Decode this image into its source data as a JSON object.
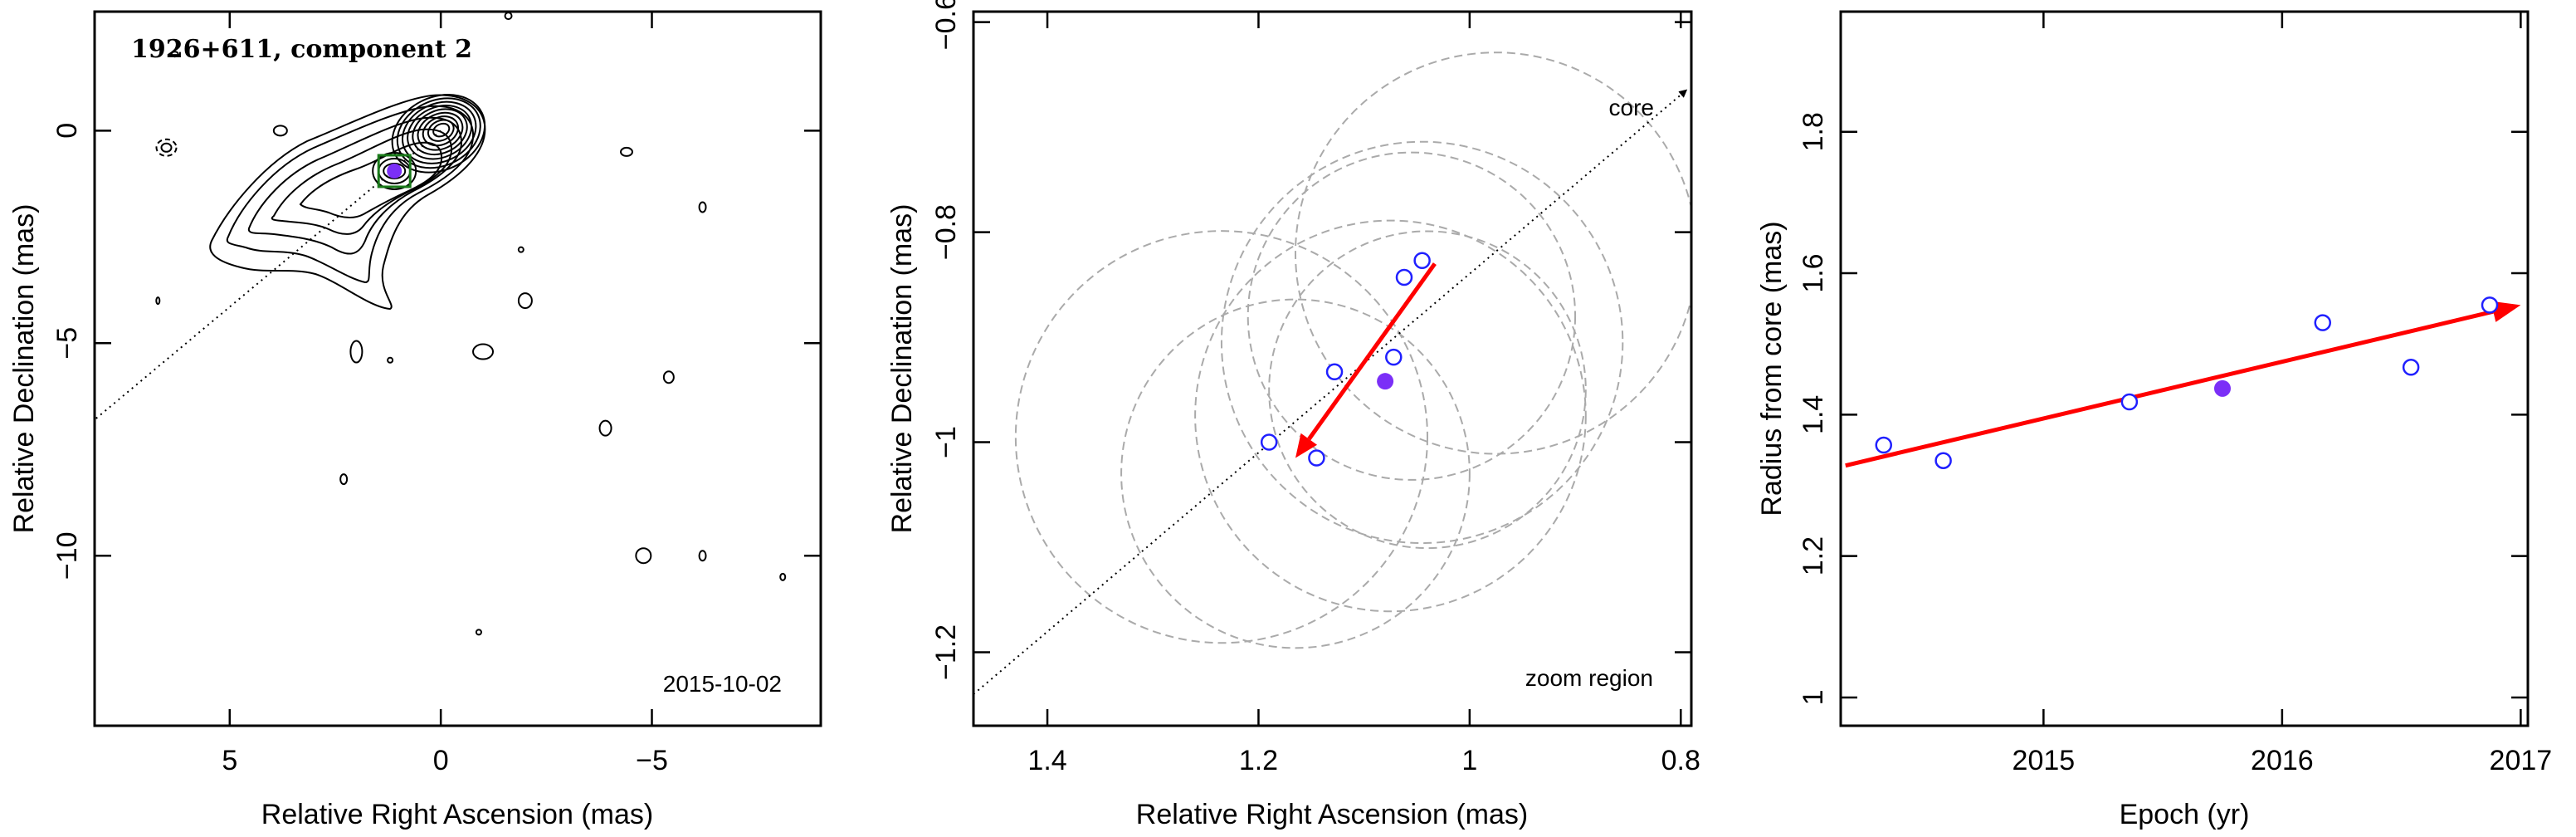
{
  "chart_data": [
    {
      "type": "contour",
      "title": "1926+611, component 2",
      "date_label": "2015-10-02",
      "xlabel": "Relative Right Ascension (mas)",
      "ylabel": "Relative Declination (mas)",
      "xlim": [
        8.2,
        -9.0
      ],
      "ylim": [
        -14.0,
        2.8
      ],
      "xticks": [
        5,
        0,
        -5
      ],
      "xtick_labels": [
        "5",
        "0",
        "−5"
      ],
      "yticks": [
        0,
        -5,
        -10
      ],
      "ytick_labels": [
        "0",
        "−5",
        "−10"
      ],
      "core_position": [
        0.0,
        0.0
      ],
      "component_position": [
        1.1,
        -0.95
      ],
      "marker_color": "#7b2ff7",
      "box_color": "#1a7a1a",
      "contour_color": "#000000"
    },
    {
      "type": "scatter",
      "annotations": [
        "core",
        "zoom region"
      ],
      "xlabel": "Relative Right Ascension (mas)",
      "ylabel": "Relative Declination (mas)",
      "xlim": [
        1.47,
        0.79
      ],
      "ylim": [
        -1.27,
        -0.59
      ],
      "xticks": [
        1.4,
        1.2,
        1.0,
        0.8
      ],
      "xtick_labels": [
        "1.4",
        "1.2",
        "1",
        "0.8"
      ],
      "yticks": [
        -0.6,
        -0.8,
        -1.0,
        -1.2
      ],
      "ytick_labels": [
        "−0.6",
        "−0.8",
        "−1",
        "−1.2"
      ],
      "epoch_points": [
        {
          "x": 1.045,
          "y": -0.827
        },
        {
          "x": 1.062,
          "y": -0.843
        },
        {
          "x": 1.072,
          "y": -0.919
        },
        {
          "x": 1.128,
          "y": -0.933
        },
        {
          "x": 1.19,
          "y": -1.0
        },
        {
          "x": 1.145,
          "y": -1.015
        }
      ],
      "highlighted_point": {
        "x": 1.08,
        "y": -0.942
      },
      "error_circles": [
        {
          "cx": 0.975,
          "cy": -0.82,
          "r": 0.19
        },
        {
          "cx": 1.045,
          "cy": -0.905,
          "r": 0.19
        },
        {
          "cx": 1.075,
          "cy": -0.975,
          "r": 0.185
        },
        {
          "cx": 1.165,
          "cy": -1.03,
          "r": 0.165
        },
        {
          "cx": 1.055,
          "cy": -0.88,
          "r": 0.155
        },
        {
          "cx": 1.04,
          "cy": -0.95,
          "r": 0.15
        },
        {
          "cx": 1.235,
          "cy": -0.995,
          "r": 0.195
        }
      ],
      "trend_arrow": {
        "from": [
          1.033,
          -0.83
        ],
        "to": [
          1.165,
          -1.015
        ]
      },
      "arrow_color": "#ff0000",
      "point_color": "#2020ff",
      "highlight_color": "#7b2ff7",
      "circle_color": "#aaaaaa"
    },
    {
      "type": "scatter",
      "xlabel": "Epoch (yr)",
      "ylabel": "Radius from core (mas)",
      "xlim": [
        2014.15,
        2017.03
      ],
      "ylim": [
        0.96,
        1.97
      ],
      "xticks": [
        2015,
        2016,
        2017
      ],
      "xtick_labels": [
        "2015",
        "2016",
        "2017"
      ],
      "yticks": [
        1.0,
        1.2,
        1.4,
        1.6,
        1.8
      ],
      "ytick_labels": [
        "1",
        "1.2",
        "1.4",
        "1.6",
        "1.8"
      ],
      "epoch_points": [
        {
          "x": 2014.33,
          "y": 1.357
        },
        {
          "x": 2014.58,
          "y": 1.335
        },
        {
          "x": 2015.36,
          "y": 1.418
        },
        {
          "x": 2016.17,
          "y": 1.53
        },
        {
          "x": 2016.54,
          "y": 1.467
        },
        {
          "x": 2016.87,
          "y": 1.555
        }
      ],
      "highlighted_point": {
        "x": 2015.75,
        "y": 1.437
      },
      "trend_arrow": {
        "from": [
          2014.17,
          1.328
        ],
        "to": [
          2017.0,
          1.555
        ]
      },
      "arrow_color": "#ff0000",
      "point_color": "#2020ff",
      "highlight_color": "#7b2ff7"
    }
  ]
}
